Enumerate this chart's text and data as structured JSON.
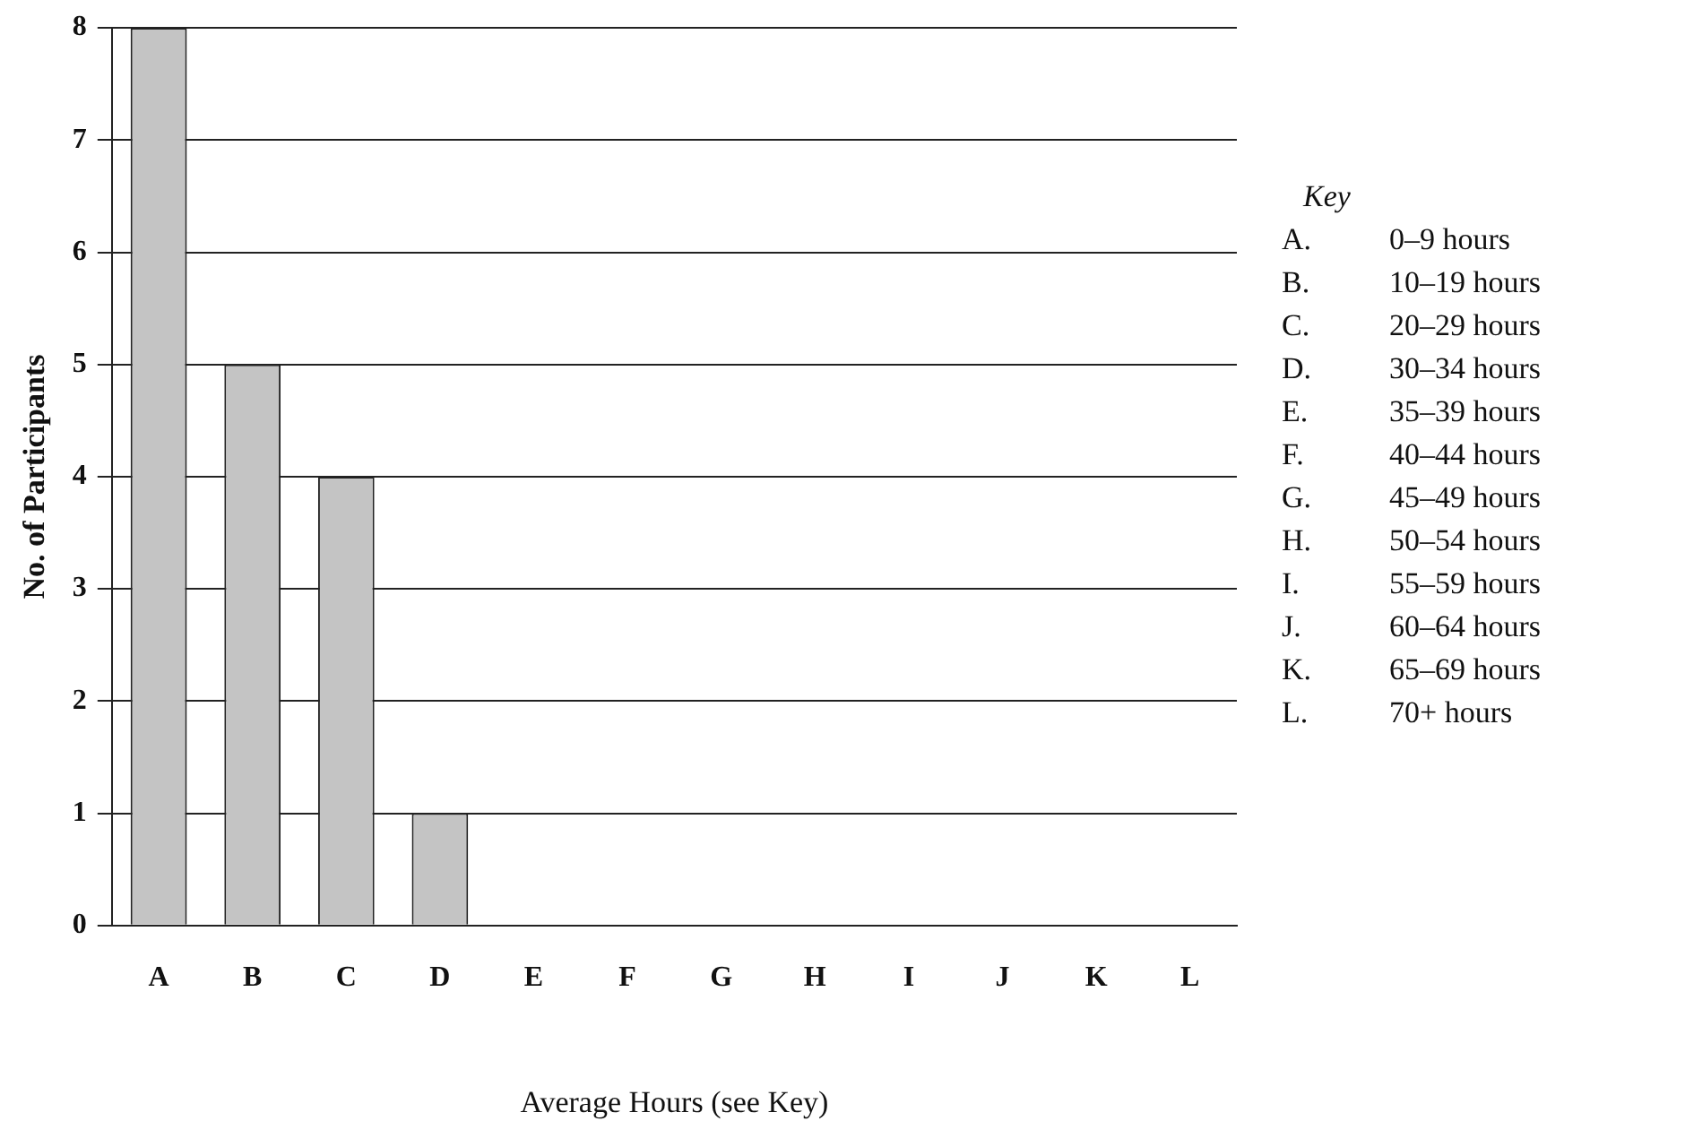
{
  "chart_data": {
    "type": "bar",
    "xlabel": "Average Hours (see Key)",
    "ylabel": "No. of Participants",
    "categories": [
      "A",
      "B",
      "C",
      "D",
      "E",
      "F",
      "G",
      "H",
      "I",
      "J",
      "K",
      "L"
    ],
    "values": [
      8,
      5,
      4,
      1,
      0,
      0,
      0,
      0,
      0,
      0,
      0,
      0
    ],
    "color": "#c4c4c4",
    "ylim": [
      0,
      8
    ],
    "yticks": [
      0,
      1,
      2,
      3,
      4,
      5,
      6,
      7,
      8
    ],
    "grid": "y",
    "annotations": [
      "Key",
      "A. 0–9 hours",
      "B. 10–19 hours",
      "C. 20–29 hours",
      "D. 30–34 hours",
      "E. 35–39 hours",
      "F. 40–44 hours",
      "G. 45–49 hours",
      "H. 50–54 hours",
      "I. 55–59 hours",
      "J. 60–64 hours",
      "K. 65–69 hours",
      "L. 70+ hours"
    ]
  }
}
